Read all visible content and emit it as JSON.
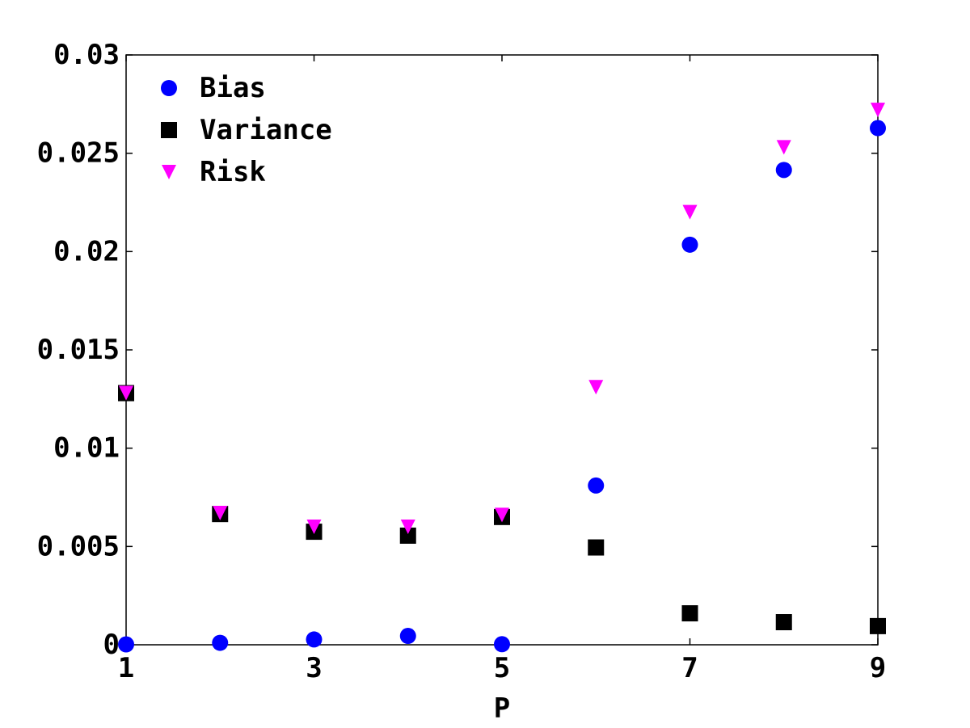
{
  "chart_data": {
    "type": "scatter",
    "title": "",
    "xlabel": "P",
    "ylabel": "",
    "xlim": [
      1,
      9
    ],
    "ylim": [
      0,
      0.03
    ],
    "x_ticks": [
      1,
      3,
      5,
      7,
      9
    ],
    "x_tick_labels": [
      "1",
      "3",
      "5",
      "7",
      "9"
    ],
    "y_ticks": [
      0,
      0.005,
      0.01,
      0.015,
      0.02,
      0.025,
      0.03
    ],
    "y_tick_labels": [
      "0",
      "0.005",
      "0.01",
      "0.015",
      "0.02",
      "0.025",
      "0.03"
    ],
    "grid": false,
    "legend_position": "top-left",
    "series": [
      {
        "name": "Bias",
        "marker": "circle",
        "color": "#0000ff",
        "x": [
          1,
          2,
          3,
          4,
          5,
          6,
          7,
          8,
          9
        ],
        "y": [
          2e-05,
          0.0001,
          0.00027,
          0.00045,
          3e-05,
          0.0081,
          0.02035,
          0.02415,
          0.02628
        ]
      },
      {
        "name": "Variance",
        "marker": "square",
        "color": "#000000",
        "x": [
          1,
          2,
          3,
          4,
          5,
          6,
          7,
          8,
          9
        ],
        "y": [
          0.0128,
          0.00665,
          0.00575,
          0.00555,
          0.0065,
          0.00495,
          0.0016,
          0.00115,
          0.00095
        ]
      },
      {
        "name": "Risk",
        "marker": "triangle-down",
        "color": "#ff00ff",
        "x": [
          1,
          2,
          3,
          4,
          5,
          6,
          7,
          8,
          9
        ],
        "y": [
          0.0128,
          0.0067,
          0.006,
          0.006,
          0.0066,
          0.0131,
          0.022,
          0.0253,
          0.0272
        ]
      }
    ]
  }
}
